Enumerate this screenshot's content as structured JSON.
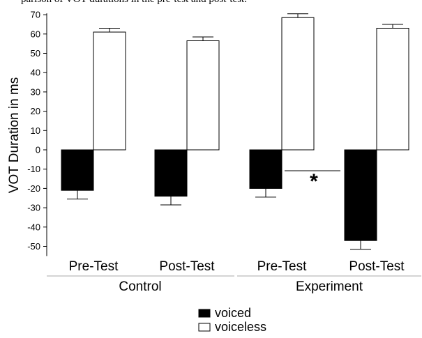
{
  "caption_fragment": "parison of VOT durations in the pre-test and post-test.",
  "chart_data": {
    "type": "bar",
    "ylabel": "VOT Duration in ms",
    "xlabel": "",
    "ylim": [
      -55,
      70
    ],
    "yticks": [
      70,
      60,
      50,
      40,
      30,
      20,
      10,
      0,
      -10,
      -20,
      -30,
      -40,
      -50
    ],
    "categories": [
      "Pre-Test",
      "Post-Test",
      "Pre-Test",
      "Post-Test"
    ],
    "groups": [
      {
        "name": "Control",
        "categories": [
          "Pre-Test",
          "Post-Test"
        ]
      },
      {
        "name": "Experiment",
        "categories": [
          "Pre-Test",
          "Post-Test"
        ]
      }
    ],
    "series": [
      {
        "name": "voiced",
        "color": "#000000",
        "values": [
          -21,
          -24,
          -20,
          -47
        ],
        "errors": [
          4.5,
          4.5,
          4.5,
          4.5
        ]
      },
      {
        "name": "voiceless",
        "color": "#ffffff",
        "values": [
          61,
          56.5,
          68.5,
          63
        ],
        "errors": [
          2,
          2,
          2,
          2
        ]
      }
    ],
    "annotations": [
      {
        "text": "*",
        "between": "Experiment Pre-Test and Post-Test"
      }
    ],
    "legend": {
      "placement": "bottom-center",
      "entries": [
        "voiced",
        "voiceless"
      ]
    },
    "grid": false
  }
}
